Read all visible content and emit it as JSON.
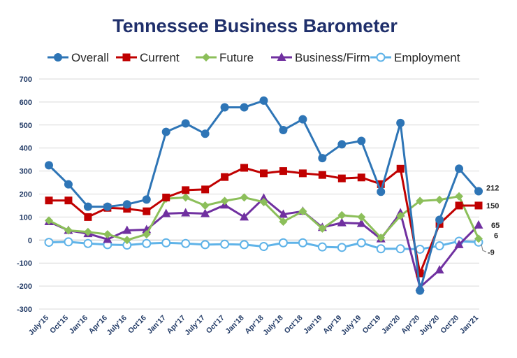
{
  "chart_data": {
    "type": "line",
    "title": "Tennessee Business Barometer",
    "ylim": [
      -300,
      700
    ],
    "yticks": [
      -300,
      -200,
      -100,
      0,
      100,
      200,
      300,
      400,
      500,
      600,
      700
    ],
    "grid": "horizontal",
    "legend_position": "top",
    "categories": [
      "July'15",
      "Oct'15",
      "Jan'16",
      "Apr'16",
      "July'16",
      "Oct'16",
      "Jan'17",
      "Apr'17",
      "July'17",
      "Oct'17",
      "Jan'18",
      "Apr'18",
      "July'18",
      "Oct'18",
      "Jan'19",
      "Apr'19",
      "July'19",
      "Oct'19",
      "Jan'20",
      "Apr'20",
      "July'20",
      "Oct'20",
      "Jan'21"
    ],
    "xtick_labels": [
      "July'15",
      "Oct'15",
      "Jan'16",
      "Apr'16",
      "July'16",
      "Oct'16",
      "Jan'17",
      "Apr'17",
      "July'17",
      "Oct'17",
      "Jan'18",
      "Apr'18",
      "July'18",
      "Oct'18",
      "Jan'19",
      "Apr'19",
      "July'19",
      "Oct'19",
      "Jan'20",
      "Apr'20",
      "July'20",
      "Oct'20",
      "Jan'21"
    ],
    "series": [
      {
        "name": "Overall",
        "color": "#2e75b6",
        "marker": "circle",
        "values": [
          325,
          242,
          145,
          145,
          155,
          176,
          470,
          507,
          462,
          577,
          577,
          606,
          478,
          525,
          356,
          416,
          431,
          210,
          509,
          -220,
          88,
          310,
          212
        ],
        "end_label": "212"
      },
      {
        "name": "Current",
        "color": "#c00000",
        "marker": "square",
        "values": [
          172,
          172,
          100,
          140,
          136,
          125,
          185,
          217,
          220,
          274,
          314,
          290,
          300,
          290,
          283,
          268,
          272,
          243,
          310,
          -145,
          70,
          150,
          150
        ],
        "end_label": "150"
      },
      {
        "name": "Future",
        "color": "#8cbf5a",
        "marker": "diamond",
        "values": [
          85,
          42,
          35,
          25,
          0,
          25,
          180,
          185,
          150,
          170,
          185,
          165,
          80,
          125,
          50,
          108,
          100,
          10,
          105,
          170,
          175,
          190,
          6
        ],
        "end_label": "6"
      },
      {
        "name": "Business/Firm",
        "color": "#7030a0",
        "marker": "triangle",
        "values": [
          80,
          42,
          28,
          3,
          42,
          45,
          115,
          118,
          115,
          152,
          100,
          182,
          112,
          125,
          55,
          75,
          72,
          5,
          118,
          -205,
          -130,
          -20,
          65
        ],
        "end_label": "65"
      },
      {
        "name": "Employment",
        "color": "#5fb3e8",
        "marker": "open-circle",
        "values": [
          -10,
          -8,
          -15,
          -20,
          -22,
          -15,
          -12,
          -15,
          -20,
          -18,
          -20,
          -28,
          -12,
          -12,
          -30,
          -32,
          -12,
          -38,
          -38,
          -40,
          -25,
          -5,
          -9
        ],
        "end_label": "-9"
      }
    ]
  }
}
